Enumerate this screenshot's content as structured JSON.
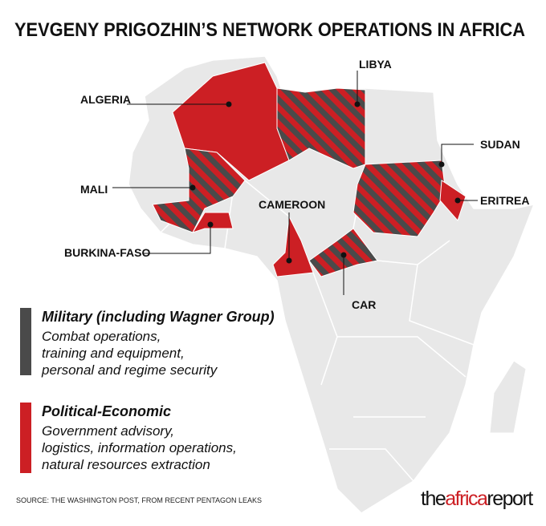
{
  "title": "YEVGENY PRIGOZHIN’S NETWORK OPERATIONS IN AFRICA",
  "countries": [
    {
      "label": "ALGERIA",
      "fill": "solid"
    },
    {
      "label": "LIBYA",
      "fill": "striped"
    },
    {
      "label": "SUDAN",
      "fill": "striped"
    },
    {
      "label": "MALI",
      "fill": "striped"
    },
    {
      "label": "ERITREA",
      "fill": "solid"
    },
    {
      "label": "BURKINA-FASO",
      "fill": "solid"
    },
    {
      "label": "CAMEROON",
      "fill": "solid"
    },
    {
      "label": "CAR",
      "fill": "striped"
    }
  ],
  "legend": [
    {
      "heading": "Military (including Wagner Group)",
      "color": "#4a4a4a",
      "lines": [
        "Combat operations,",
        "training and equipment,",
        "personal and regime security"
      ]
    },
    {
      "heading": "Political-Economic",
      "color": "#cc1f24",
      "lines": [
        "Government advisory,",
        "logistics, information operations,",
        "natural resources extraction"
      ]
    }
  ],
  "source": "SOURCE: THE WASHINGTON POST, FROM RECENT PENTAGON LEAKS",
  "brand": {
    "part1": "the",
    "part2": "africa",
    "part3": "report"
  }
}
